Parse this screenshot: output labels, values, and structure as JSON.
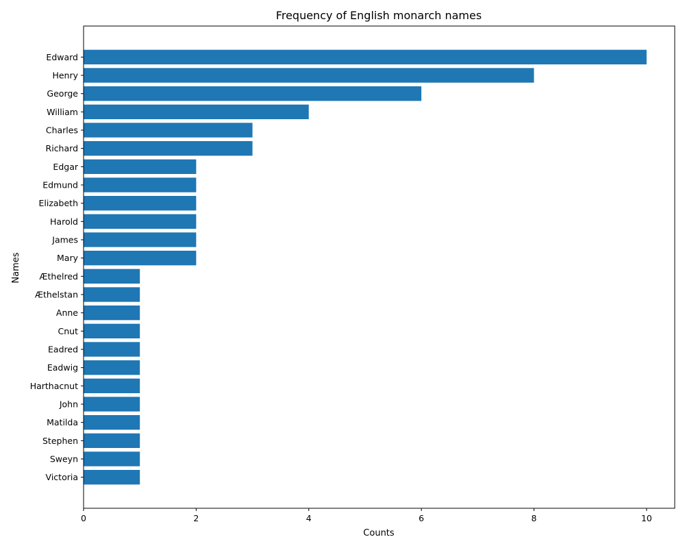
{
  "chart_data": {
    "type": "bar",
    "orientation": "horizontal",
    "title": "Frequency of English monarch names",
    "xlabel": "Counts",
    "ylabel": "Names",
    "xlim": [
      0,
      10.5
    ],
    "xticks": [
      0,
      2,
      4,
      6,
      8,
      10
    ],
    "grid": false,
    "bar_color": "#1f77b4",
    "categories": [
      "Edward",
      "Henry",
      "George",
      "William",
      "Charles",
      "Richard",
      "Edgar",
      "Edmund",
      "Elizabeth",
      "Harold",
      "James",
      "Mary",
      "Æthelred",
      "Æthelstan",
      "Anne",
      "Cnut",
      "Eadred",
      "Eadwig",
      "Harthacnut",
      "John",
      "Matilda",
      "Stephen",
      "Sweyn",
      "Victoria"
    ],
    "values": [
      10,
      8,
      6,
      4,
      3,
      3,
      2,
      2,
      2,
      2,
      2,
      2,
      1,
      1,
      1,
      1,
      1,
      1,
      1,
      1,
      1,
      1,
      1,
      1
    ]
  }
}
